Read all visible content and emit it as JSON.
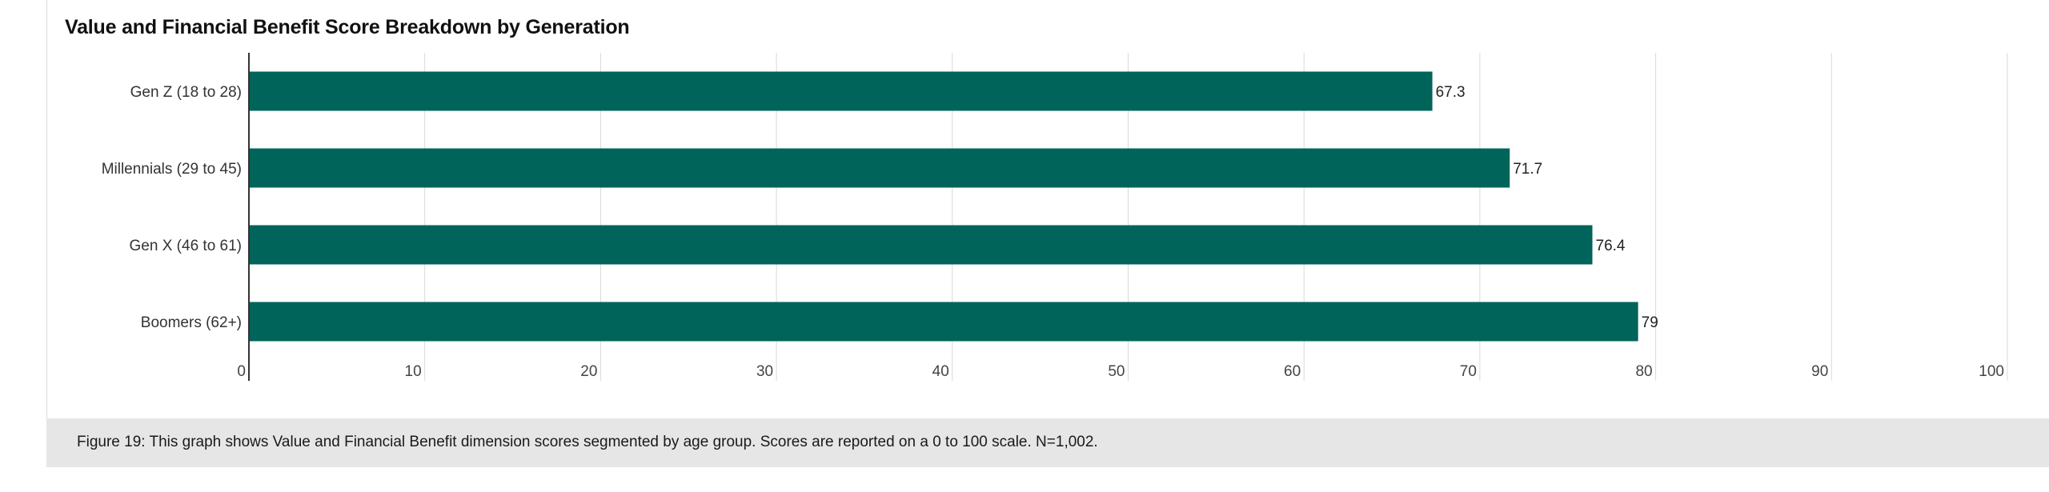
{
  "chart_data": {
    "type": "bar",
    "orientation": "horizontal",
    "title": "Value and Financial Benefit Score Breakdown by Generation",
    "categories": [
      "Gen Z (18 to 28)",
      "Millennials (29 to 45)",
      "Gen X (46 to 61)",
      "Boomers (62+)"
    ],
    "values": [
      67.3,
      71.7,
      76.4,
      79
    ],
    "value_labels": [
      "67.3",
      "71.7",
      "76.4",
      "79"
    ],
    "xlim": [
      0,
      100
    ],
    "xticks": [
      0,
      10,
      20,
      30,
      40,
      50,
      60,
      70,
      80,
      90,
      100
    ],
    "grid": true,
    "bar_color": "#00645a"
  },
  "caption": "Figure 19: This graph shows Value and Financial Benefit dimension scores segmented by age group. Scores are reported on a 0 to 100 scale. N=1,002."
}
